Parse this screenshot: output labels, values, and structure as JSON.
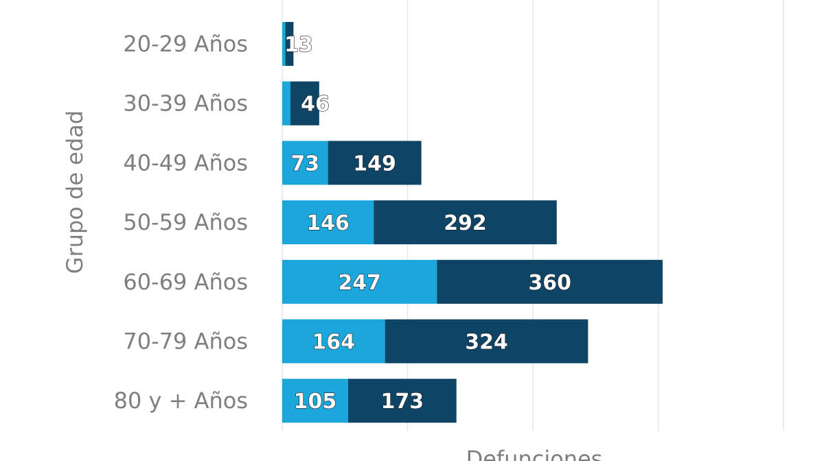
{
  "chart_data": {
    "type": "bar",
    "orientation": "horizontal",
    "stacked": true,
    "ylabel": "Grupo de edad",
    "xlabel": "Defunciones",
    "categories": [
      "20-29 Años",
      "30-39 Años",
      "40-49 Años",
      "50-59 Años",
      "60-69 Años",
      "70-79 Años",
      "80 y + Años"
    ],
    "series": [
      {
        "color": "#1ca7dc",
        "values": [
          5,
          13,
          73,
          146,
          247,
          164,
          105
        ]
      },
      {
        "color": "#0e4466",
        "values": [
          13,
          46,
          149,
          292,
          360,
          324,
          173
        ]
      }
    ],
    "data_labels": [
      [
        "",
        "46",
        "149",
        "292",
        "360",
        "324",
        "173"
      ],
      [
        "13",
        "",
        "73",
        "146",
        "247",
        "164",
        "105"
      ]
    ],
    "xlim": [
      0,
      820
    ],
    "grid": true,
    "legend": "none"
  }
}
